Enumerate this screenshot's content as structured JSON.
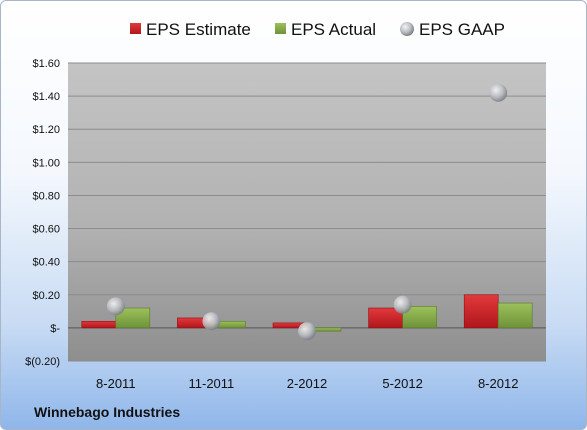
{
  "chart_data": {
    "type": "bar",
    "title": "",
    "xlabel": "",
    "ylabel": "",
    "categories": [
      "8-2011",
      "11-2011",
      "2-2012",
      "5-2012",
      "8-2012"
    ],
    "series": [
      {
        "name": "EPS Estimate",
        "kind": "bar",
        "color": "#cc1f25",
        "values": [
          0.04,
          0.06,
          0.03,
          0.12,
          0.2
        ]
      },
      {
        "name": "EPS Actual",
        "kind": "bar",
        "color": "#84a94a",
        "values": [
          0.12,
          0.04,
          -0.02,
          0.13,
          0.15
        ]
      },
      {
        "name": "EPS GAAP",
        "kind": "scatter",
        "color": "#b8bcc2",
        "values": [
          0.13,
          0.04,
          -0.02,
          0.14,
          1.42
        ]
      }
    ],
    "ylim": [
      -0.2,
      1.6
    ],
    "yticks": [
      -0.2,
      0,
      0.2,
      0.4,
      0.6,
      0.8,
      1.0,
      1.2,
      1.4,
      1.6
    ],
    "ytick_labels": [
      "$(0.20)",
      "$-",
      "$0.20",
      "$0.40",
      "$0.60",
      "$0.80",
      "$1.00",
      "$1.20",
      "$1.40",
      "$1.60"
    ],
    "grid": true,
    "legend_position": "top"
  },
  "footer": {
    "company": "Winnebago Industries"
  }
}
